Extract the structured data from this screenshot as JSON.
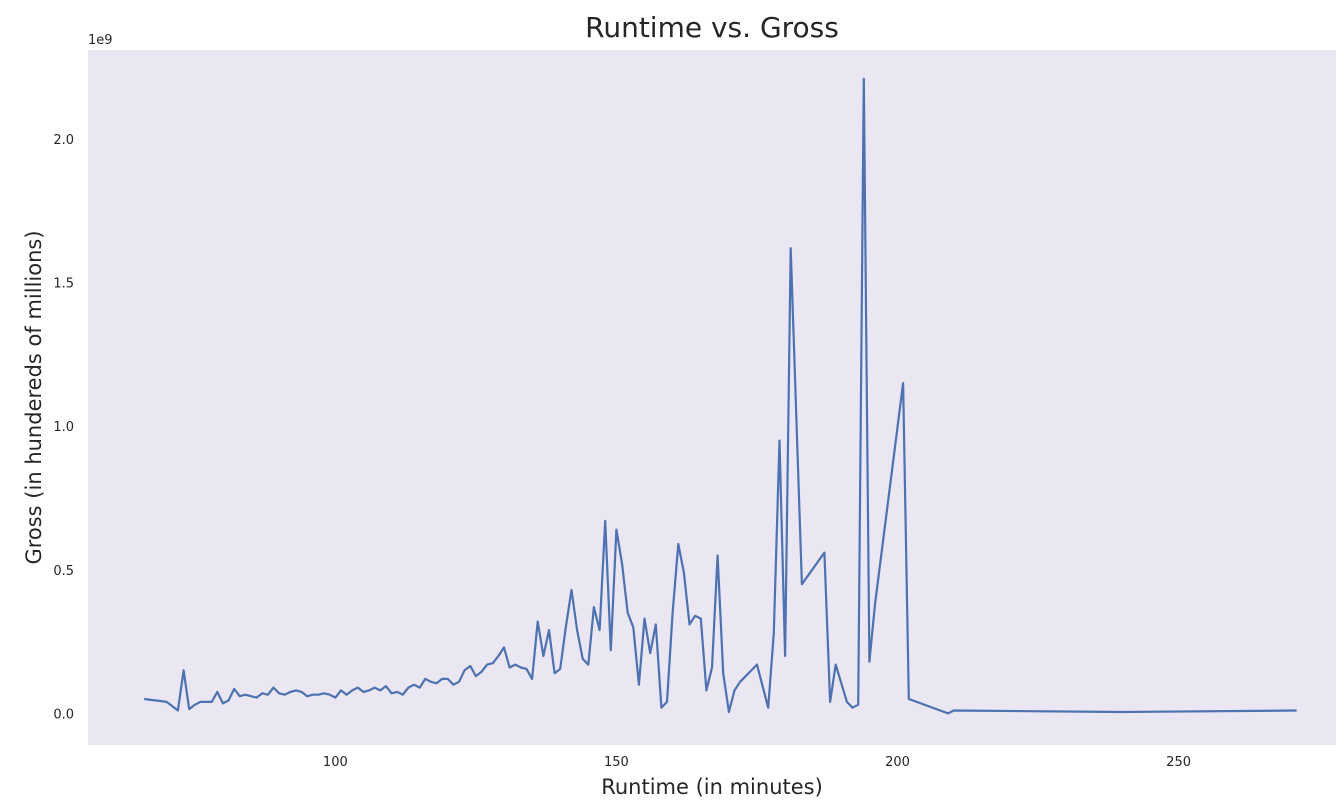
{
  "chart_data": {
    "type": "line",
    "title": "Runtime vs. Gross",
    "xlabel": "Runtime (in minutes)",
    "ylabel": "Gross (in hundereds of millions)",
    "y_offset_label": "1e9",
    "xlim": [
      56,
      278
    ],
    "ylim": [
      -0.11,
      2.31
    ],
    "x_ticks": [
      100,
      150,
      200,
      250
    ],
    "y_ticks": [
      0.0,
      0.5,
      1.0,
      1.5,
      2.0
    ],
    "x_tick_labels": [
      "100",
      "150",
      "200",
      "250"
    ],
    "y_tick_labels": [
      "0.0",
      "0.5",
      "1.0",
      "1.5",
      "2.0"
    ],
    "grid": false,
    "background": "#eae6f2",
    "series": [
      {
        "color": "#4c72b0",
        "x": [
          66,
          70,
          72,
          73,
          74,
          75,
          76,
          78,
          79,
          80,
          81,
          82,
          83,
          84,
          85,
          86,
          87,
          88,
          89,
          90,
          91,
          92,
          93,
          94,
          95,
          96,
          97,
          98,
          99,
          100,
          101,
          102,
          103,
          104,
          105,
          106,
          107,
          108,
          109,
          110,
          111,
          112,
          113,
          114,
          115,
          116,
          117,
          118,
          119,
          120,
          121,
          122,
          123,
          124,
          125,
          126,
          127,
          128,
          129,
          130,
          131,
          132,
          133,
          134,
          135,
          136,
          137,
          138,
          139,
          140,
          141,
          142,
          143,
          144,
          145,
          146,
          147,
          148,
          149,
          150,
          151,
          152,
          153,
          154,
          155,
          156,
          157,
          158,
          159,
          160,
          161,
          162,
          163,
          164,
          165,
          166,
          167,
          168,
          169,
          170,
          171,
          172,
          175,
          177,
          178,
          179,
          180,
          181,
          183,
          187,
          188,
          189,
          191,
          192,
          193,
          194,
          195,
          196,
          201,
          202,
          209,
          210,
          240,
          271
        ],
        "y": [
          0.05,
          0.04,
          0.01,
          0.15,
          0.015,
          0.03,
          0.04,
          0.04,
          0.075,
          0.035,
          0.045,
          0.085,
          0.06,
          0.065,
          0.06,
          0.055,
          0.07,
          0.065,
          0.09,
          0.07,
          0.065,
          0.075,
          0.08,
          0.075,
          0.06,
          0.065,
          0.065,
          0.07,
          0.065,
          0.055,
          0.08,
          0.065,
          0.08,
          0.09,
          0.075,
          0.08,
          0.09,
          0.08,
          0.095,
          0.07,
          0.075,
          0.065,
          0.09,
          0.1,
          0.09,
          0.12,
          0.11,
          0.105,
          0.12,
          0.12,
          0.1,
          0.11,
          0.15,
          0.165,
          0.13,
          0.145,
          0.17,
          0.175,
          0.2,
          0.23,
          0.16,
          0.17,
          0.16,
          0.155,
          0.12,
          0.32,
          0.2,
          0.29,
          0.14,
          0.155,
          0.3,
          0.43,
          0.29,
          0.19,
          0.17,
          0.37,
          0.29,
          0.67,
          0.22,
          0.64,
          0.52,
          0.35,
          0.3,
          0.1,
          0.33,
          0.21,
          0.31,
          0.02,
          0.04,
          0.35,
          0.59,
          0.49,
          0.31,
          0.34,
          0.33,
          0.08,
          0.16,
          0.55,
          0.14,
          0.005,
          0.08,
          0.11,
          0.17,
          0.02,
          0.28,
          0.95,
          0.2,
          1.62,
          0.45,
          0.56,
          0.04,
          0.17,
          0.04,
          0.02,
          0.03,
          2.21,
          0.18,
          0.38,
          1.15,
          0.05,
          0.0,
          0.01,
          0.005,
          0.01
        ]
      }
    ]
  }
}
